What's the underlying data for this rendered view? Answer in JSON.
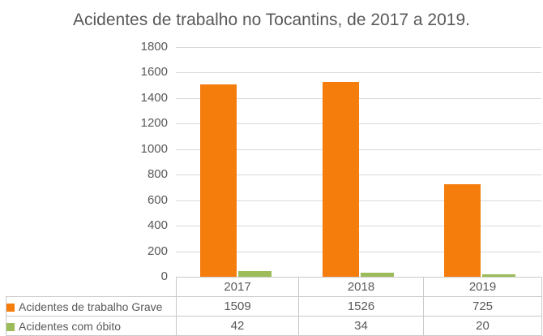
{
  "chart_data": {
    "type": "bar",
    "title": "Acidentes de trabalho no Tocantins, de 2017 a 2019.",
    "categories": [
      "2017",
      "2018",
      "2019"
    ],
    "series": [
      {
        "name": "Acidentes de trabalho Grave",
        "color": "#f47d0c",
        "values": [
          1509,
          1526,
          725
        ]
      },
      {
        "name": "Acidentes com óbito",
        "color": "#9cbb59",
        "values": [
          42,
          34,
          20
        ]
      }
    ],
    "xlabel": "",
    "ylabel": "",
    "ylim": [
      0,
      1800
    ],
    "ytick_step": 200,
    "grid": true,
    "legend_position": "table-left"
  },
  "colors": {
    "text": "#595959",
    "gridline": "#d9d9d9",
    "table_border": "#c9c9c9",
    "background": "#ffffff"
  }
}
